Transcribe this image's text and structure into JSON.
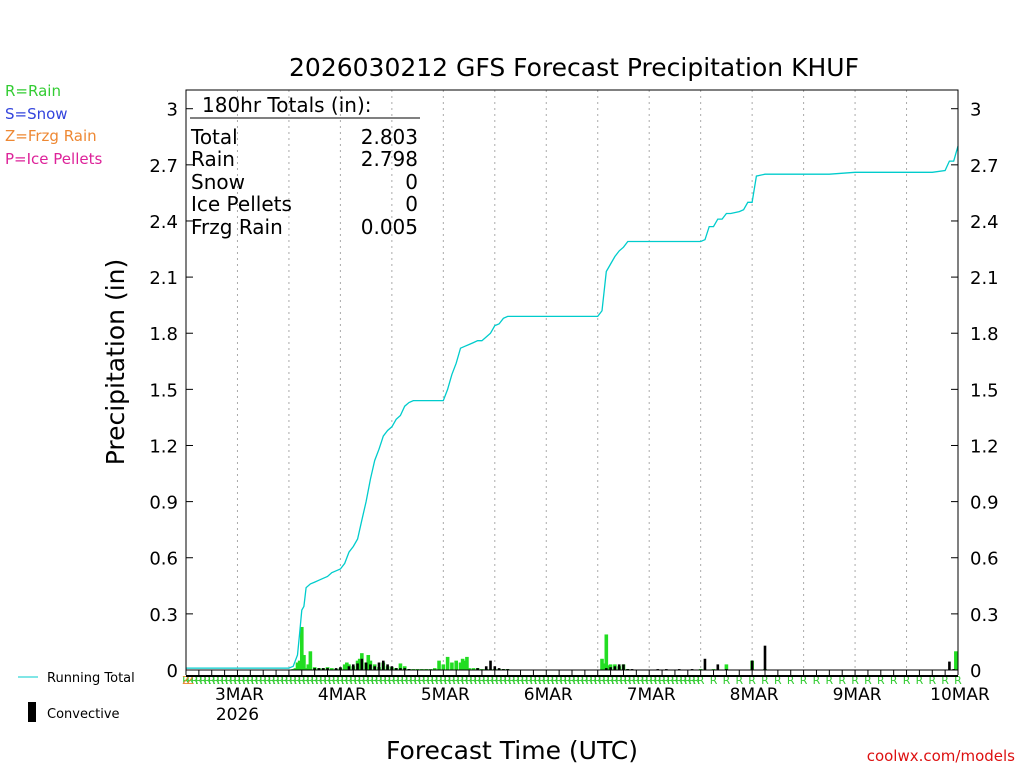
{
  "chart_data": {
    "type": "bar+line",
    "title": "2026030212 GFS Forecast Precipitation KHUF",
    "xlabel": "Forecast Time (UTC)",
    "ylabel": "Precipitation (in)",
    "ylim": [
      0,
      3.1
    ],
    "yticks": [
      0,
      0.3,
      0.6,
      0.9,
      1.2,
      1.5,
      1.8,
      2.1,
      2.4,
      2.7,
      3
    ],
    "ytick_labels": [
      "0",
      "0.3",
      "0.6",
      "0.9",
      "1.2",
      "1.5",
      "1.8",
      "2.1",
      "2.4",
      "2.7",
      "3"
    ],
    "xlim_hours": [
      0,
      180
    ],
    "xticks": [
      {
        "label": "3MAR",
        "sublabel": "2026",
        "hour": 12
      },
      {
        "label": "4MAR",
        "hour": 36
      },
      {
        "label": "5MAR",
        "hour": 60
      },
      {
        "label": "6MAR",
        "hour": 84
      },
      {
        "label": "7MAR",
        "hour": 108
      },
      {
        "label": "8MAR",
        "hour": 132
      },
      {
        "label": "9MAR",
        "hour": 156
      },
      {
        "label": "10MAR",
        "hour": 180
      }
    ],
    "totals_box": {
      "header": "180hr Totals (in):",
      "rows": [
        {
          "label": "Total",
          "value": "2.803"
        },
        {
          "label": "Rain",
          "value": "2.798"
        },
        {
          "label": "Snow",
          "value": "0"
        },
        {
          "label": "Ice Pellets",
          "value": "0"
        },
        {
          "label": "Frzg Rain",
          "value": "0.005"
        }
      ]
    },
    "type_legend": [
      {
        "text": "R=Rain",
        "color": "#33cc33"
      },
      {
        "text": "S=Snow",
        "color": "#3344dd"
      },
      {
        "text": "Z=Frzg Rain",
        "color": "#ee8833"
      },
      {
        "text": "P=Ice Pellets",
        "color": "#dd2299"
      }
    ],
    "series_legend": [
      {
        "text": "Running Total",
        "color": "#00cccc",
        "kind": "line"
      },
      {
        "text": "Convective",
        "color": "#000000",
        "kind": "bar"
      }
    ],
    "running_total": {
      "hours": [
        0,
        24,
        25,
        26,
        26.5,
        27,
        27.5,
        28,
        29,
        30,
        31,
        32,
        33,
        34,
        35,
        36,
        37,
        38,
        39,
        40,
        41,
        42,
        43,
        44,
        45,
        46,
        47,
        48,
        49,
        50,
        51,
        52,
        53,
        54,
        55,
        56,
        57,
        58,
        59,
        60,
        61,
        62,
        63,
        64,
        65,
        66,
        67,
        68,
        69,
        70,
        71,
        72,
        73,
        74,
        75,
        76,
        77,
        78,
        79,
        80,
        81,
        82,
        83,
        84,
        90,
        96,
        97,
        98,
        99,
        100,
        101,
        102,
        103,
        104,
        105,
        106,
        108,
        114,
        120,
        121,
        122,
        123,
        124,
        125,
        126,
        127,
        129,
        130,
        131,
        132,
        133,
        135,
        138,
        144,
        150,
        156,
        162,
        168,
        174,
        177,
        178,
        179,
        180
      ],
      "values": [
        0.01,
        0.01,
        0.02,
        0.08,
        0.2,
        0.32,
        0.34,
        0.44,
        0.46,
        0.47,
        0.48,
        0.49,
        0.5,
        0.52,
        0.53,
        0.54,
        0.57,
        0.63,
        0.66,
        0.7,
        0.8,
        0.9,
        1.02,
        1.12,
        1.18,
        1.25,
        1.28,
        1.3,
        1.34,
        1.36,
        1.41,
        1.43,
        1.44,
        1.44,
        1.44,
        1.44,
        1.44,
        1.44,
        1.44,
        1.44,
        1.5,
        1.58,
        1.64,
        1.72,
        1.73,
        1.74,
        1.75,
        1.76,
        1.76,
        1.78,
        1.8,
        1.84,
        1.85,
        1.88,
        1.89,
        1.89,
        1.89,
        1.89,
        1.89,
        1.89,
        1.89,
        1.89,
        1.89,
        1.89,
        1.89,
        1.89,
        1.92,
        2.13,
        2.17,
        2.21,
        2.24,
        2.26,
        2.29,
        2.29,
        2.29,
        2.29,
        2.29,
        2.29,
        2.29,
        2.3,
        2.37,
        2.37,
        2.41,
        2.41,
        2.44,
        2.44,
        2.45,
        2.46,
        2.5,
        2.5,
        2.64,
        2.65,
        2.65,
        2.65,
        2.65,
        2.66,
        2.66,
        2.66,
        2.66,
        2.67,
        2.72,
        2.72,
        2.8
      ]
    },
    "bars_total": {
      "hours": [
        25,
        25.5,
        26,
        26.5,
        27,
        27.5,
        28,
        28.5,
        29,
        30,
        31,
        32,
        33,
        34,
        35,
        36,
        37,
        37.5,
        38,
        39,
        40,
        40.5,
        41,
        42,
        42.5,
        43,
        44,
        45,
        46,
        47,
        48,
        49,
        50,
        51,
        52,
        53,
        54,
        55,
        56,
        57,
        58,
        59,
        60,
        61,
        62,
        63,
        64,
        64.5,
        65,
        65.5,
        66,
        67,
        68,
        69,
        70,
        71,
        72,
        73,
        74,
        75,
        97,
        97.5,
        98,
        98.5,
        99,
        100,
        101,
        102,
        103,
        120,
        123,
        126,
        132,
        135,
        179.5
      ],
      "values": [
        0.005,
        0.01,
        0.04,
        0.05,
        0.23,
        0.08,
        0.01,
        0.03,
        0.1,
        0.015,
        0.01,
        0.01,
        0.015,
        0.01,
        0.005,
        0.01,
        0.03,
        0.04,
        0.03,
        0.02,
        0.05,
        0.06,
        0.09,
        0.04,
        0.08,
        0.05,
        0.03,
        0.015,
        0.04,
        0.02,
        0.015,
        0.01,
        0.035,
        0.02,
        0.005,
        0.005,
        0.005,
        0.005,
        0.005,
        0.005,
        0.01,
        0.05,
        0.03,
        0.07,
        0.04,
        0.05,
        0.04,
        0.06,
        0.05,
        0.07,
        0.01,
        0.01,
        0.01,
        0.005,
        0.005,
        0.005,
        0.005,
        0.005,
        0.005,
        0.005,
        0.06,
        0.035,
        0.19,
        0.025,
        0.03,
        0.03,
        0.02,
        0.03,
        0.005,
        0.005,
        0.005,
        0.03,
        0.05,
        0.005,
        0.1
      ]
    },
    "bars_convective": {
      "hours": [
        30,
        31,
        32,
        33,
        35,
        36,
        38,
        39,
        40,
        41,
        42,
        43,
        44,
        45,
        46,
        47,
        48,
        49,
        50,
        51,
        52,
        68,
        70,
        71,
        72,
        73,
        74,
        75,
        98,
        99,
        100,
        101,
        102,
        103,
        104,
        110,
        112,
        115,
        118,
        121,
        124,
        126,
        132,
        135,
        178,
        179
      ],
      "values": [
        0.01,
        0.01,
        0.01,
        0.01,
        0.01,
        0.015,
        0.02,
        0.03,
        0.035,
        0.06,
        0.04,
        0.03,
        0.02,
        0.04,
        0.05,
        0.03,
        0.02,
        0.01,
        0.01,
        0.01,
        0.005,
        0.01,
        0.02,
        0.05,
        0.02,
        0.01,
        0.005,
        0.005,
        0.01,
        0.015,
        0.02,
        0.03,
        0.03,
        0.005,
        0.005,
        0.005,
        0.005,
        0.005,
        0.005,
        0.06,
        0.03,
        0.005,
        0.05,
        0.13,
        0.045,
        0.005
      ]
    },
    "ptype_marks": {
      "letter": "R",
      "color": "#33cc33",
      "hours": [
        0,
        1,
        2,
        3,
        4,
        5,
        6,
        7,
        8,
        9,
        10,
        11,
        12,
        13,
        14,
        15,
        16,
        17,
        18,
        19,
        20,
        21,
        22,
        23,
        24,
        25,
        26,
        27,
        28,
        29,
        30,
        31,
        32,
        33,
        34,
        35,
        36,
        37,
        38,
        39,
        40,
        41,
        42,
        43,
        44,
        45,
        46,
        47,
        48,
        49,
        50,
        51,
        52,
        53,
        54,
        55,
        56,
        57,
        58,
        59,
        60,
        61,
        62,
        63,
        64,
        65,
        66,
        67,
        68,
        69,
        70,
        71,
        72,
        73,
        74,
        75,
        76,
        77,
        78,
        79,
        80,
        81,
        82,
        83,
        84,
        85,
        86,
        87,
        88,
        89,
        90,
        91,
        92,
        93,
        94,
        95,
        96,
        97,
        98,
        99,
        100,
        101,
        102,
        103,
        104,
        105,
        106,
        107,
        108,
        109,
        110,
        111,
        112,
        113,
        114,
        115,
        116,
        117,
        118,
        119,
        120,
        123,
        126,
        129,
        132,
        135,
        138,
        141,
        144,
        147,
        150,
        153,
        156,
        159,
        162,
        165,
        168,
        171,
        174,
        177,
        180
      ],
      "frzg_marks": {
        "letter": "Z",
        "color": "#ee8833",
        "hours": [
          0,
          1
        ]
      }
    }
  },
  "footer": {
    "credit": "coolwx.com/models"
  }
}
